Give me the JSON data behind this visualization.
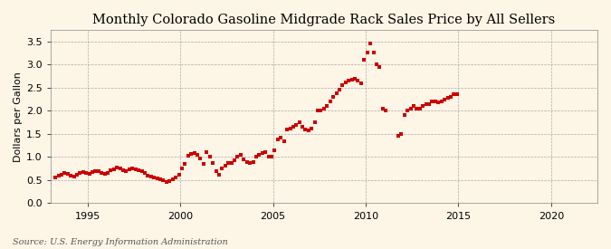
{
  "title": "Monthly Colorado Gasoline Midgrade Rack Sales Price by All Sellers",
  "ylabel": "Dollars per Gallon",
  "source": "Source: U.S. Energy Information Administration",
  "background_color": "#FDF5E6",
  "plot_bg_color": "#FDF5E6",
  "marker_color": "#CC0000",
  "marker": "s",
  "marker_size": 3.2,
  "xlim": [
    1993.0,
    2022.5
  ],
  "ylim": [
    0.0,
    3.75
  ],
  "yticks": [
    0.0,
    0.5,
    1.0,
    1.5,
    2.0,
    2.5,
    3.0,
    3.5
  ],
  "xticks": [
    1995,
    2000,
    2005,
    2010,
    2015,
    2020
  ],
  "title_fontsize": 10.5,
  "label_fontsize": 8,
  "tick_fontsize": 8,
  "data": [
    [
      1993.25,
      0.55
    ],
    [
      1993.42,
      0.6
    ],
    [
      1993.58,
      0.62
    ],
    [
      1993.75,
      0.65
    ],
    [
      1993.92,
      0.63
    ],
    [
      1994.08,
      0.6
    ],
    [
      1994.25,
      0.58
    ],
    [
      1994.42,
      0.61
    ],
    [
      1994.58,
      0.65
    ],
    [
      1994.75,
      0.68
    ],
    [
      1994.92,
      0.66
    ],
    [
      1995.08,
      0.64
    ],
    [
      1995.25,
      0.68
    ],
    [
      1995.42,
      0.7
    ],
    [
      1995.58,
      0.69
    ],
    [
      1995.75,
      0.66
    ],
    [
      1995.92,
      0.64
    ],
    [
      1996.08,
      0.66
    ],
    [
      1996.25,
      0.72
    ],
    [
      1996.42,
      0.74
    ],
    [
      1996.58,
      0.78
    ],
    [
      1996.75,
      0.76
    ],
    [
      1996.92,
      0.72
    ],
    [
      1997.08,
      0.7
    ],
    [
      1997.25,
      0.73
    ],
    [
      1997.42,
      0.76
    ],
    [
      1997.58,
      0.74
    ],
    [
      1997.75,
      0.72
    ],
    [
      1997.92,
      0.7
    ],
    [
      1998.08,
      0.65
    ],
    [
      1998.25,
      0.6
    ],
    [
      1998.42,
      0.57
    ],
    [
      1998.58,
      0.55
    ],
    [
      1998.75,
      0.53
    ],
    [
      1998.92,
      0.51
    ],
    [
      1999.08,
      0.5
    ],
    [
      1999.25,
      0.46
    ],
    [
      1999.42,
      0.48
    ],
    [
      1999.58,
      0.52
    ],
    [
      1999.75,
      0.56
    ],
    [
      1999.92,
      0.62
    ],
    [
      2000.08,
      0.76
    ],
    [
      2000.25,
      0.86
    ],
    [
      2000.42,
      1.02
    ],
    [
      2000.58,
      1.06
    ],
    [
      2000.75,
      1.08
    ],
    [
      2000.92,
      1.05
    ],
    [
      2001.08,
      0.96
    ],
    [
      2001.25,
      0.85
    ],
    [
      2001.42,
      1.1
    ],
    [
      2001.58,
      1.0
    ],
    [
      2001.75,
      0.88
    ],
    [
      2001.92,
      0.7
    ],
    [
      2002.08,
      0.62
    ],
    [
      2002.25,
      0.75
    ],
    [
      2002.42,
      0.82
    ],
    [
      2002.58,
      0.88
    ],
    [
      2002.75,
      0.88
    ],
    [
      2002.92,
      0.92
    ],
    [
      2003.08,
      1.0
    ],
    [
      2003.25,
      1.05
    ],
    [
      2003.42,
      0.95
    ],
    [
      2003.58,
      0.9
    ],
    [
      2003.75,
      0.88
    ],
    [
      2003.92,
      0.9
    ],
    [
      2004.08,
      1.0
    ],
    [
      2004.25,
      1.05
    ],
    [
      2004.42,
      1.08
    ],
    [
      2004.58,
      1.1
    ],
    [
      2004.75,
      1.0
    ],
    [
      2004.92,
      1.0
    ],
    [
      2005.08,
      1.15
    ],
    [
      2005.25,
      1.38
    ],
    [
      2005.42,
      1.42
    ],
    [
      2005.58,
      1.35
    ],
    [
      2005.75,
      1.6
    ],
    [
      2005.92,
      1.62
    ],
    [
      2006.08,
      1.65
    ],
    [
      2006.25,
      1.7
    ],
    [
      2006.42,
      1.75
    ],
    [
      2006.58,
      1.65
    ],
    [
      2006.75,
      1.6
    ],
    [
      2006.92,
      1.58
    ],
    [
      2007.08,
      1.62
    ],
    [
      2007.25,
      1.75
    ],
    [
      2007.42,
      2.0
    ],
    [
      2007.58,
      2.0
    ],
    [
      2007.75,
      2.05
    ],
    [
      2007.92,
      2.1
    ],
    [
      2008.08,
      2.2
    ],
    [
      2008.25,
      2.3
    ],
    [
      2008.42,
      2.38
    ],
    [
      2008.58,
      2.45
    ],
    [
      2008.75,
      2.55
    ],
    [
      2008.92,
      2.62
    ],
    [
      2009.08,
      2.65
    ],
    [
      2009.25,
      2.68
    ],
    [
      2009.42,
      2.7
    ],
    [
      2009.58,
      2.65
    ],
    [
      2009.75,
      2.6
    ],
    [
      2009.92,
      3.1
    ],
    [
      2010.08,
      3.25
    ],
    [
      2010.25,
      3.45
    ],
    [
      2010.42,
      3.25
    ],
    [
      2010.58,
      3.0
    ],
    [
      2010.75,
      2.95
    ],
    [
      2010.92,
      2.05
    ],
    [
      2011.08,
      2.0
    ],
    [
      2011.75,
      1.45
    ],
    [
      2011.92,
      1.5
    ],
    [
      2012.08,
      1.9
    ],
    [
      2012.25,
      2.0
    ],
    [
      2012.42,
      2.05
    ],
    [
      2012.58,
      2.1
    ],
    [
      2012.75,
      2.05
    ],
    [
      2012.92,
      2.05
    ],
    [
      2013.08,
      2.1
    ],
    [
      2013.25,
      2.15
    ],
    [
      2013.42,
      2.15
    ],
    [
      2013.58,
      2.2
    ],
    [
      2013.75,
      2.2
    ],
    [
      2013.92,
      2.18
    ],
    [
      2014.08,
      2.2
    ],
    [
      2014.25,
      2.25
    ],
    [
      2014.42,
      2.28
    ],
    [
      2014.58,
      2.3
    ],
    [
      2014.75,
      2.35
    ],
    [
      2014.92,
      2.35
    ]
  ]
}
